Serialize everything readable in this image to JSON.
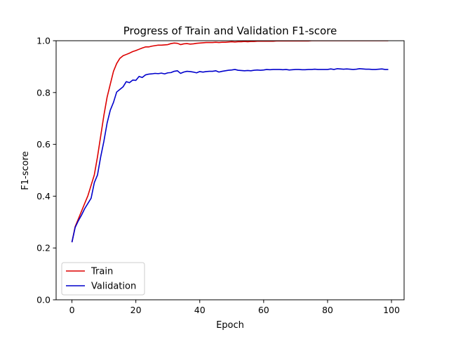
{
  "chart_data": {
    "type": "line",
    "title": "Progress of Train and Validation F1-score",
    "xlabel": "Epoch",
    "ylabel": "F1-score",
    "xlim": [
      -4.95,
      103.95
    ],
    "ylim": [
      0.0,
      1.0
    ],
    "xticks": [
      0,
      20,
      40,
      60,
      80,
      100
    ],
    "yticks": [
      0.0,
      0.2,
      0.4,
      0.6,
      0.8,
      1.0
    ],
    "xtick_labels": [
      "0",
      "20",
      "40",
      "60",
      "80",
      "100"
    ],
    "ytick_labels": [
      "0.0",
      "0.2",
      "0.4",
      "0.6",
      "0.8",
      "1.0"
    ],
    "grid": false,
    "legend_position": "lower-left",
    "x": [
      0,
      1,
      2,
      3,
      4,
      5,
      6,
      7,
      8,
      9,
      10,
      11,
      12,
      13,
      14,
      15,
      16,
      17,
      18,
      19,
      20,
      21,
      22,
      23,
      24,
      25,
      26,
      27,
      28,
      29,
      30,
      31,
      32,
      33,
      34,
      35,
      36,
      37,
      38,
      39,
      40,
      41,
      42,
      43,
      44,
      45,
      46,
      47,
      48,
      49,
      50,
      51,
      52,
      53,
      54,
      55,
      56,
      57,
      58,
      59,
      60,
      61,
      62,
      63,
      64,
      65,
      66,
      67,
      68,
      69,
      70,
      71,
      72,
      73,
      74,
      75,
      76,
      77,
      78,
      79,
      80,
      81,
      82,
      83,
      84,
      85,
      86,
      87,
      88,
      89,
      90,
      91,
      92,
      93,
      94,
      95,
      96,
      97,
      98,
      99
    ],
    "series": [
      {
        "name": "Train",
        "color": "#dd0000",
        "values": [
          0.222,
          0.282,
          0.312,
          0.342,
          0.372,
          0.402,
          0.442,
          0.482,
          0.552,
          0.632,
          0.712,
          0.782,
          0.832,
          0.882,
          0.912,
          0.932,
          0.942,
          0.947,
          0.952,
          0.958,
          0.962,
          0.967,
          0.972,
          0.976,
          0.976,
          0.979,
          0.981,
          0.983,
          0.983,
          0.984,
          0.985,
          0.989,
          0.991,
          0.99,
          0.985,
          0.988,
          0.989,
          0.987,
          0.988,
          0.99,
          0.991,
          0.992,
          0.993,
          0.993,
          0.993,
          0.994,
          0.993,
          0.994,
          0.994,
          0.995,
          0.996,
          0.995,
          0.996,
          0.996,
          0.997,
          0.996,
          0.997,
          0.997,
          0.998,
          0.998,
          0.998,
          0.998,
          0.998,
          0.998,
          0.999,
          0.999,
          0.999,
          0.999,
          0.999,
          0.999,
          0.999,
          0.999,
          0.999,
          0.999,
          0.999,
          1.0,
          1.0,
          1.0,
          1.0,
          1.0,
          1.0,
          1.0,
          1.0,
          1.0,
          1.0,
          1.0,
          1.0,
          1.0,
          1.0,
          1.0,
          1.0,
          1.0,
          1.0,
          1.0,
          1.0,
          1.0,
          1.0,
          1.0,
          1.0,
          1.0
        ]
      },
      {
        "name": "Validation",
        "color": "#0000cc",
        "values": [
          0.222,
          0.279,
          0.305,
          0.327,
          0.352,
          0.372,
          0.392,
          0.452,
          0.482,
          0.552,
          0.612,
          0.682,
          0.732,
          0.762,
          0.802,
          0.812,
          0.822,
          0.842,
          0.838,
          0.848,
          0.847,
          0.862,
          0.858,
          0.868,
          0.871,
          0.872,
          0.874,
          0.873,
          0.875,
          0.872,
          0.876,
          0.877,
          0.882,
          0.884,
          0.874,
          0.879,
          0.882,
          0.881,
          0.879,
          0.876,
          0.881,
          0.879,
          0.881,
          0.882,
          0.882,
          0.884,
          0.879,
          0.882,
          0.884,
          0.886,
          0.887,
          0.889,
          0.886,
          0.885,
          0.884,
          0.885,
          0.884,
          0.886,
          0.887,
          0.886,
          0.887,
          0.889,
          0.888,
          0.889,
          0.889,
          0.889,
          0.888,
          0.889,
          0.887,
          0.888,
          0.889,
          0.889,
          0.888,
          0.888,
          0.889,
          0.889,
          0.89,
          0.889,
          0.889,
          0.889,
          0.889,
          0.891,
          0.889,
          0.892,
          0.891,
          0.89,
          0.891,
          0.89,
          0.889,
          0.89,
          0.892,
          0.891,
          0.89,
          0.89,
          0.889,
          0.889,
          0.89,
          0.891,
          0.889,
          0.889
        ]
      }
    ]
  }
}
